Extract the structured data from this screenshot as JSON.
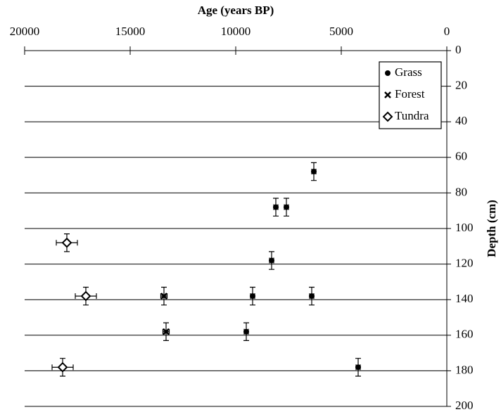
{
  "chart_data": {
    "type": "scatter",
    "x_label": "Age (years BP)",
    "y_label": "Depth (cm)",
    "xlim": [
      20000,
      0
    ],
    "xticks": [
      20000,
      15000,
      10000,
      5000,
      0
    ],
    "ylim": [
      0,
      200
    ],
    "yticks": [
      0,
      20,
      40,
      60,
      80,
      100,
      120,
      140,
      160,
      180,
      200
    ],
    "grid": true,
    "legend": "upper right",
    "series": [
      {
        "name": "Grass",
        "marker": "circle",
        "color": "#000000",
        "x": [
          6300,
          8100,
          7600,
          8300,
          9200,
          6400,
          9500,
          4200
        ],
        "y": [
          68,
          88,
          88,
          118,
          138,
          138,
          158,
          178
        ],
        "xerr": [
          100,
          100,
          100,
          100,
          100,
          100,
          100,
          100
        ],
        "yerr": [
          5,
          5,
          5,
          5,
          5,
          5,
          5,
          5
        ]
      },
      {
        "name": "Forest",
        "marker": "x",
        "color": "#000000",
        "x": [
          13400,
          13300
        ],
        "y": [
          138,
          158
        ],
        "xerr": [
          150,
          150
        ],
        "yerr": [
          5,
          5
        ]
      },
      {
        "name": "Tundra",
        "marker": "diamond",
        "color": "#000000",
        "x": [
          18000,
          17100,
          18200
        ],
        "y": [
          108,
          138,
          178
        ],
        "xerr": [
          500,
          500,
          500
        ],
        "yerr": [
          5,
          5,
          5
        ]
      }
    ]
  }
}
